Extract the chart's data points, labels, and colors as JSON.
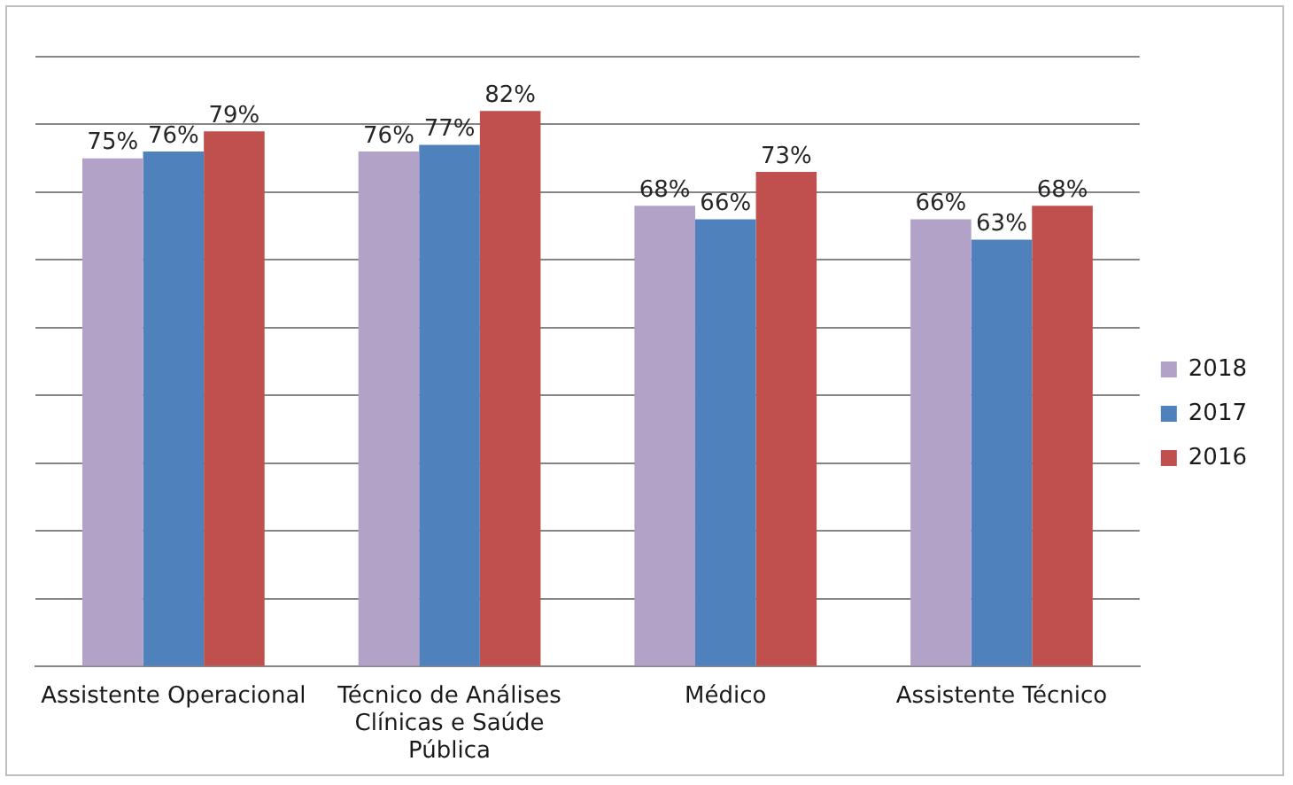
{
  "chart_data": {
    "type": "bar",
    "categories": [
      "Assistente Operacional",
      "Técnico de Análises Clínicas e Saúde Pública",
      "Médico",
      "Assistente Técnico"
    ],
    "series": [
      {
        "name": "2018",
        "color": "#b3a2c7",
        "values": [
          75,
          76,
          68,
          66
        ],
        "value_labels": [
          "75%",
          "76%",
          "68%",
          "66%"
        ]
      },
      {
        "name": "2017",
        "color": "#4f81bd",
        "values": [
          76,
          77,
          66,
          63
        ],
        "value_labels": [
          "76%",
          "77%",
          "66%",
          "63%"
        ]
      },
      {
        "name": "2016",
        "color": "#c0504d",
        "values": [
          79,
          82,
          73,
          68
        ],
        "value_labels": [
          "79%",
          "82%",
          "73%",
          "68%"
        ]
      }
    ],
    "ylim": [
      0,
      90
    ],
    "yticks": [
      {
        "value": 0,
        "label": null
      },
      {
        "value": 10,
        "label": null
      },
      {
        "value": 20,
        "label": null
      },
      {
        "value": 30,
        "label": null
      },
      {
        "value": 40,
        "label": null
      },
      {
        "value": 50,
        "label": null
      },
      {
        "value": 60,
        "label": null
      },
      {
        "value": 70,
        "label": null
      },
      {
        "value": 80,
        "label": null
      },
      {
        "value": 90,
        "label": null
      }
    ],
    "grid": "y",
    "legend": "right",
    "tick_labels": "x"
  }
}
